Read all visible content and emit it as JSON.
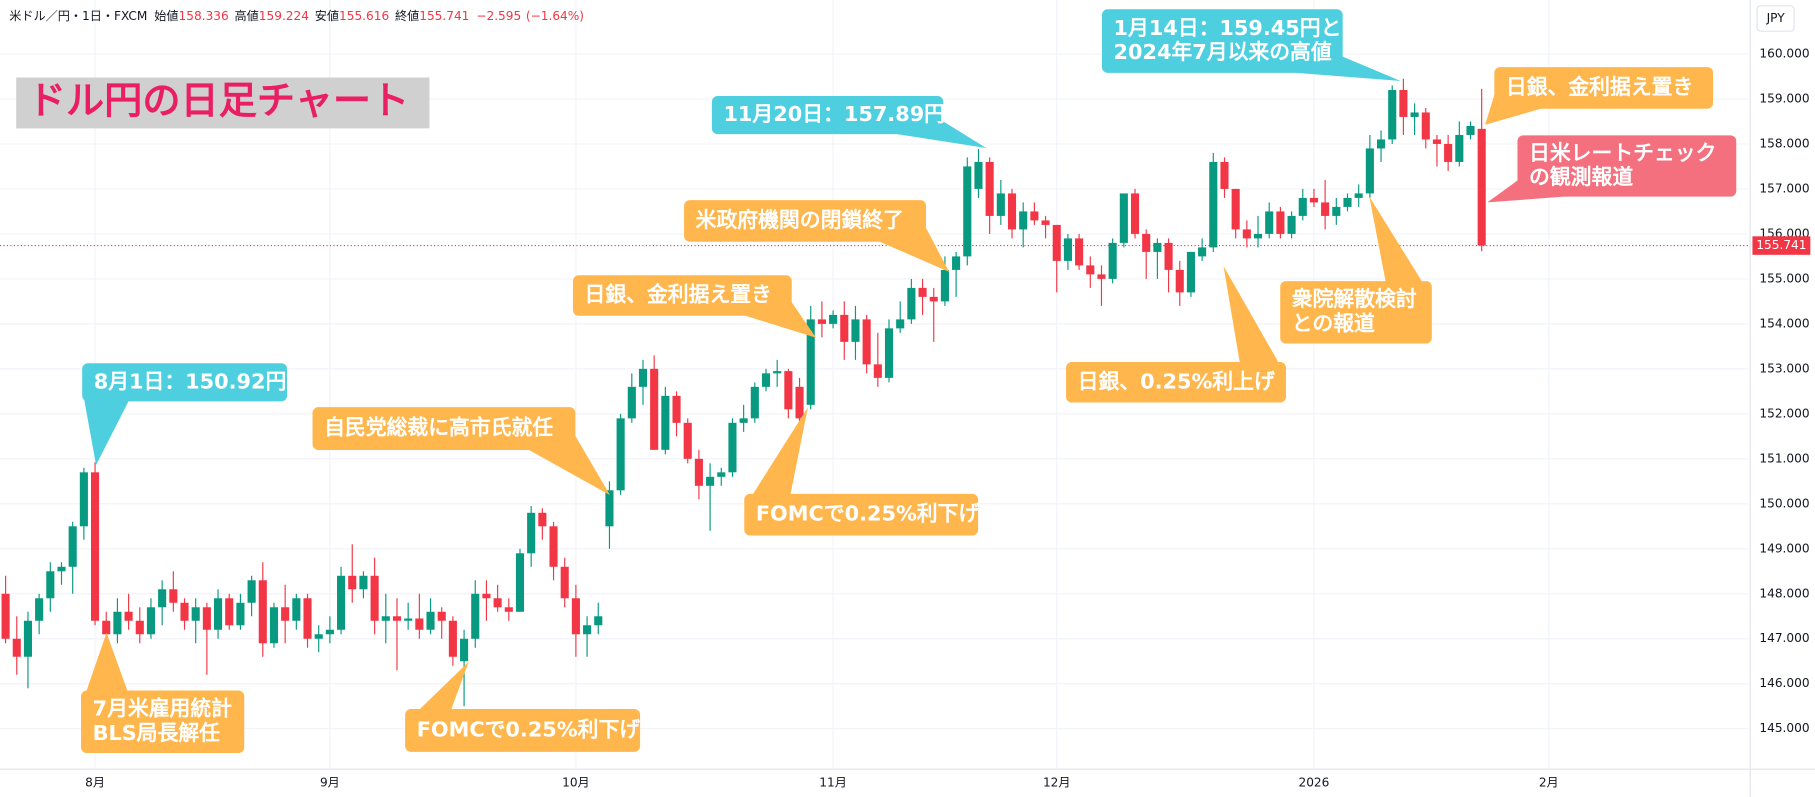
{
  "header": {
    "symbol": "米ドル／円・1日・FXCM",
    "open_label": "始値",
    "high_label": "高値",
    "low_label": "安値",
    "close_label": "終値",
    "change": {
      "value": -2.595,
      "label": "−2.595"
    },
    "change_pct": {
      "value": -1.64,
      "label": "(−1.64%)"
    }
  },
  "currency": "JPY",
  "chart_data": {
    "type": "candlestick",
    "title": "ドル円の日足チャート",
    "open": [
      148.0,
      147.0,
      146.6,
      147.4,
      147.9,
      148.5,
      148.6,
      149.5,
      150.7,
      147.4,
      147.1,
      147.6,
      147.4,
      147.1,
      147.7,
      148.1,
      147.8,
      147.4,
      147.7,
      147.2,
      147.9,
      147.3,
      147.8,
      148.3,
      146.9,
      147.7,
      147.4,
      147.9,
      147.0,
      147.1,
      147.2,
      148.4,
      148.1,
      148.4,
      147.4,
      147.5,
      147.4,
      147.45,
      147.2,
      147.6,
      147.4,
      146.5,
      147.0,
      148.0,
      147.9,
      147.7,
      147.6,
      148.9,
      149.8,
      149.5,
      148.6,
      147.9,
      147.1,
      147.3,
      149.5,
      150.3,
      151.9,
      152.6,
      153.0,
      151.2,
      152.4,
      151.8,
      151.0,
      150.4,
      150.6,
      150.7,
      151.8,
      151.9,
      152.6,
      152.9,
      152.95,
      152.6,
      152.2,
      154.1,
      154.0,
      154.2,
      153.6,
      154.1,
      153.1,
      152.8,
      153.9,
      154.1,
      154.8,
      154.6,
      154.5,
      155.2,
      155.5,
      157.0,
      157.6,
      156.4,
      156.9,
      156.1,
      156.5,
      156.3,
      156.2,
      155.4,
      155.9,
      155.3,
      155.1,
      155.0,
      155.8,
      156.9,
      156.0,
      155.6,
      155.8,
      155.2,
      154.7,
      155.5,
      155.7,
      157.6,
      157.0,
      156.1,
      155.9,
      156.0,
      156.5,
      156.0,
      156.4,
      156.8,
      156.7,
      156.4,
      156.6,
      156.8,
      156.9,
      157.9,
      158.1,
      159.2,
      158.6,
      158.7,
      158.1,
      158.0,
      157.6,
      158.2,
      158.336
    ],
    "high": [
      148.4,
      147.5,
      147.6,
      148.0,
      148.7,
      148.7,
      149.6,
      150.8,
      150.92,
      147.6,
      147.9,
      148.0,
      147.7,
      147.9,
      148.3,
      148.5,
      147.9,
      147.9,
      147.8,
      148.1,
      148.0,
      148.0,
      148.4,
      148.7,
      147.8,
      148.2,
      148.0,
      148.0,
      147.3,
      147.5,
      148.6,
      149.1,
      148.5,
      148.8,
      148.0,
      147.9,
      147.8,
      148.0,
      147.9,
      147.7,
      147.5,
      147.2,
      148.3,
      148.3,
      148.2,
      147.9,
      149.0,
      149.95,
      149.9,
      149.6,
      148.8,
      148.2,
      147.5,
      147.8,
      150.5,
      152.0,
      152.9,
      153.2,
      153.3,
      152.6,
      152.5,
      151.9,
      151.2,
      150.9,
      150.8,
      151.9,
      152.2,
      152.7,
      153.0,
      153.2,
      153.0,
      152.8,
      154.4,
      154.5,
      154.3,
      154.5,
      154.4,
      154.2,
      153.8,
      154.1,
      154.5,
      155.0,
      155.0,
      154.8,
      155.5,
      155.6,
      157.7,
      157.89,
      157.7,
      157.2,
      157.0,
      156.7,
      156.7,
      156.4,
      156.2,
      156.0,
      156.0,
      155.5,
      155.3,
      155.9,
      156.9,
      157.0,
      156.1,
      155.9,
      155.9,
      155.4,
      155.6,
      155.9,
      157.8,
      157.7,
      157.0,
      156.3,
      156.4,
      156.7,
      156.6,
      156.5,
      157.0,
      157.0,
      157.2,
      156.8,
      156.9,
      157.1,
      158.2,
      158.3,
      159.3,
      159.45,
      158.9,
      158.8,
      158.2,
      158.2,
      158.5,
      158.5,
      159.224
    ],
    "low": [
      146.9,
      146.2,
      145.9,
      147.1,
      147.6,
      148.2,
      148.0,
      149.2,
      147.3,
      146.9,
      146.9,
      147.2,
      146.9,
      147.0,
      147.3,
      147.6,
      147.2,
      146.9,
      146.2,
      147.0,
      147.2,
      147.2,
      147.5,
      146.6,
      146.8,
      146.9,
      147.2,
      146.8,
      146.7,
      146.9,
      147.1,
      147.8,
      147.9,
      147.1,
      146.9,
      146.3,
      147.2,
      147.0,
      147.1,
      147.0,
      146.4,
      145.5,
      146.8,
      147.4,
      147.6,
      147.4,
      147.6,
      148.6,
      149.2,
      148.3,
      147.7,
      146.6,
      146.6,
      147.1,
      149.0,
      150.2,
      151.8,
      152.2,
      151.2,
      151.1,
      151.5,
      150.9,
      150.1,
      149.4,
      150.4,
      150.6,
      151.6,
      151.8,
      152.5,
      152.6,
      151.9,
      151.6,
      152.1,
      153.7,
      153.9,
      153.2,
      153.2,
      152.9,
      152.6,
      152.7,
      153.8,
      154.0,
      154.2,
      153.6,
      154.4,
      154.6,
      155.3,
      156.8,
      156.0,
      156.2,
      155.9,
      155.7,
      156.2,
      155.9,
      154.7,
      155.2,
      155.2,
      154.8,
      154.4,
      154.9,
      155.7,
      155.9,
      155.0,
      155.0,
      154.7,
      154.4,
      154.6,
      155.4,
      155.6,
      156.8,
      155.9,
      155.7,
      155.7,
      155.9,
      155.9,
      155.9,
      156.3,
      156.6,
      156.1,
      156.2,
      156.5,
      156.6,
      156.8,
      157.6,
      158.0,
      158.2,
      158.2,
      157.9,
      157.5,
      157.4,
      157.5,
      158.1,
      155.616
    ],
    "close": [
      147.0,
      146.6,
      147.4,
      147.9,
      148.5,
      148.6,
      149.5,
      150.7,
      147.4,
      147.1,
      147.6,
      147.4,
      147.1,
      147.7,
      148.1,
      147.8,
      147.4,
      147.7,
      147.2,
      147.9,
      147.3,
      147.8,
      148.3,
      146.9,
      147.7,
      147.4,
      147.9,
      147.0,
      147.1,
      147.2,
      148.4,
      148.1,
      148.4,
      147.4,
      147.5,
      147.4,
      147.45,
      147.2,
      147.6,
      147.4,
      146.6,
      147.0,
      148.0,
      147.9,
      147.7,
      147.6,
      148.9,
      149.8,
      149.5,
      148.6,
      147.9,
      147.1,
      147.3,
      147.5,
      150.3,
      151.9,
      152.6,
      153.0,
      151.2,
      152.4,
      151.8,
      151.0,
      150.4,
      150.6,
      150.7,
      151.8,
      151.9,
      152.6,
      152.9,
      152.95,
      152.1,
      151.9,
      154.1,
      154.0,
      154.2,
      153.6,
      154.1,
      153.1,
      152.8,
      153.9,
      154.1,
      154.8,
      154.6,
      154.5,
      155.2,
      155.5,
      157.5,
      157.6,
      156.4,
      156.9,
      156.1,
      156.5,
      156.3,
      156.2,
      155.4,
      155.9,
      155.3,
      155.1,
      155.0,
      155.8,
      156.9,
      156.0,
      155.6,
      155.8,
      155.2,
      154.7,
      155.6,
      155.7,
      157.6,
      157.0,
      156.1,
      155.9,
      156.0,
      156.5,
      156.0,
      156.4,
      156.8,
      156.7,
      156.4,
      156.6,
      156.8,
      156.9,
      157.9,
      158.1,
      159.2,
      158.6,
      158.7,
      158.1,
      158.0,
      157.6,
      158.2,
      158.4,
      155.741
    ],
    "up_color": "#089981",
    "down_color": "#f23645",
    "xlim": [
      -0.5,
      155.8
    ],
    "xticks": [
      {
        "value": 8,
        "label": "8月"
      },
      {
        "value": 29,
        "label": "9月"
      },
      {
        "value": 51,
        "label": "10月"
      },
      {
        "value": 74,
        "label": "11月"
      },
      {
        "value": 94,
        "label": "12月"
      },
      {
        "value": 117,
        "label": "2026"
      },
      {
        "value": 138,
        "label": "2月"
      }
    ],
    "ylim": [
      144.1,
      161.2
    ],
    "yticks": [
      {
        "value": 145,
        "label": "145.000"
      },
      {
        "value": 146,
        "label": "146.000"
      },
      {
        "value": 147,
        "label": "147.000"
      },
      {
        "value": 148,
        "label": "148.000"
      },
      {
        "value": 149,
        "label": "149.000"
      },
      {
        "value": 150,
        "label": "150.000"
      },
      {
        "value": 151,
        "label": "151.000"
      },
      {
        "value": 152,
        "label": "152.000"
      },
      {
        "value": 153,
        "label": "153.000"
      },
      {
        "value": 154,
        "label": "154.000"
      },
      {
        "value": 155,
        "label": "155.000"
      },
      {
        "value": 156,
        "label": "156.000"
      },
      {
        "value": 157,
        "label": "157.000"
      },
      {
        "value": 158,
        "label": "158.000"
      },
      {
        "value": 159,
        "label": "159.000"
      },
      {
        "value": 160,
        "label": "160.000"
      }
    ],
    "grid": true,
    "annotations": [
      {
        "lines": [
          "8月1日：150.92円"
        ],
        "color": "#4ecfe0"
      },
      {
        "lines": [
          "11月20日：157.89円"
        ],
        "color": "#4ecfe0"
      },
      {
        "lines": [
          "1月14日：159.45円と",
          "2024年7月以来の高値"
        ],
        "color": "#4ecfe0"
      },
      {
        "lines": [
          "日銀、金利据え置き"
        ],
        "color": "#ffb74d"
      },
      {
        "lines": [
          "日米レートチェック",
          "の観測報道"
        ],
        "color": "#f5707f"
      },
      {
        "lines": [
          "衆院解散検討",
          "との報道"
        ],
        "color": "#ffb74d"
      },
      {
        "lines": [
          "日銀、0.25%利上げ"
        ],
        "color": "#ffb74d"
      },
      {
        "lines": [
          "米政府機関の閉鎖終了"
        ],
        "color": "#ffb74d"
      },
      {
        "lines": [
          "日銀、金利据え置き"
        ],
        "color": "#ffb74d"
      },
      {
        "lines": [
          "自民党総裁に高市氏就任"
        ],
        "color": "#ffb74d"
      },
      {
        "lines": [
          "FOMCで0.25%利下げ"
        ],
        "color": "#ffb74d"
      },
      {
        "lines": [
          "FOMCで0.25%利下げ"
        ],
        "color": "#ffb74d"
      },
      {
        "lines": [
          "7月米雇用統計",
          "BLS局長解任"
        ],
        "color": "#ffb74d"
      }
    ]
  }
}
